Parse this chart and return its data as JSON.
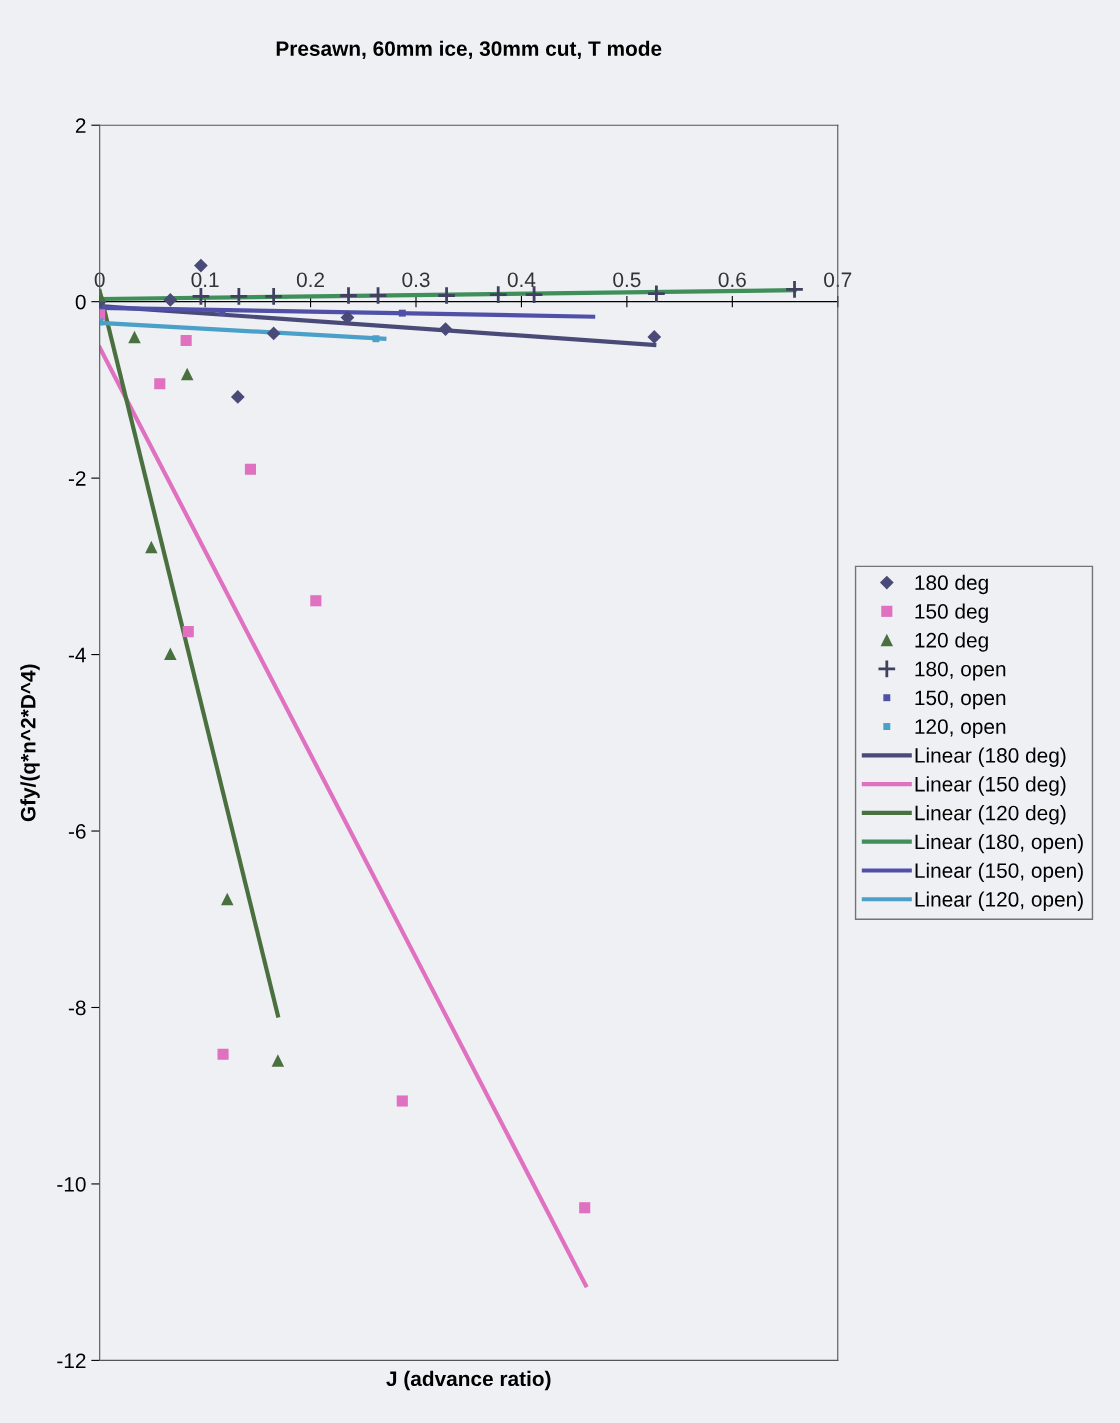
{
  "chart_data": {
    "type": "scatter",
    "title": "Presawn, 60mm ice, 30mm cut, T mode",
    "xlabel": "J (advance ratio)",
    "ylabel": "Gfy/(q*n^2*D^4)",
    "xlim": [
      0,
      0.7
    ],
    "ylim": [
      -12,
      2
    ],
    "xticks": [
      0,
      0.1,
      0.2,
      0.3,
      0.4,
      0.5,
      0.6,
      0.7
    ],
    "yticks": [
      -12,
      -10,
      -8,
      -6,
      -4,
      -2,
      0,
      2
    ],
    "grid": false,
    "legend": "right",
    "series": [
      {
        "name": "180 deg",
        "marker": "diamond",
        "color": "#4a4a78",
        "x": [
          0,
          0.067,
          0.096,
          0.131,
          0.165,
          0.235,
          0.328,
          0.526
        ],
        "values": [
          0,
          0.02,
          0.41,
          -1.08,
          -0.36,
          -0.18,
          -0.31,
          -0.4
        ]
      },
      {
        "name": "150 deg",
        "marker": "square",
        "color": "#e070c0",
        "x": [
          0,
          0.057,
          0.082,
          0.084,
          0.117,
          0.143,
          0.205,
          0.287,
          0.46
        ],
        "values": [
          -0.15,
          -0.93,
          -0.44,
          -3.74,
          -8.53,
          -1.9,
          -3.39,
          -9.06,
          -10.27
        ]
      },
      {
        "name": "120 deg",
        "marker": "triangle",
        "color": "#4a7040",
        "x": [
          0,
          0.033,
          0.049,
          0.067,
          0.083,
          0.121,
          0.169
        ],
        "values": [
          0.07,
          -0.4,
          -2.78,
          -3.99,
          -0.82,
          -6.77,
          -8.6
        ]
      },
      {
        "name": "180, open",
        "marker": "cross",
        "color": "#404060",
        "x": [
          0.096,
          0.132,
          0.165,
          0.236,
          0.264,
          0.329,
          0.378,
          0.412,
          0.528,
          0.659
        ],
        "values": [
          0.06,
          0.06,
          0.06,
          0.07,
          0.07,
          0.07,
          0.08,
          0.08,
          0.09,
          0.14
        ]
      },
      {
        "name": "150, open",
        "marker": "square",
        "color": "#5050a8",
        "x": [
          0.116,
          0.287
        ],
        "values": [
          -0.12,
          -0.13
        ]
      },
      {
        "name": "120, open",
        "marker": "square",
        "color": "#4aa0c8",
        "x": [
          0,
          0.262
        ],
        "values": [
          -0.23,
          -0.42
        ]
      },
      {
        "name": "Linear (180 deg)",
        "type": "line",
        "color": "#4a4a78",
        "x": [
          0,
          0.526
        ],
        "values": [
          -0.05,
          -0.49
        ]
      },
      {
        "name": "Linear (150 deg)",
        "type": "line",
        "color": "#e070c0",
        "x": [
          0,
          0.461
        ],
        "values": [
          -0.52,
          -11.15
        ]
      },
      {
        "name": "Linear (120 deg)",
        "type": "line",
        "color": "#4a7040",
        "x": [
          0,
          0.169
        ],
        "values": [
          0.12,
          -8.09
        ]
      },
      {
        "name": "Linear (180, open)",
        "type": "line",
        "color": "#3f8f5a",
        "x": [
          0,
          0.659
        ],
        "values": [
          0.03,
          0.13
        ]
      },
      {
        "name": "Linear (150, open)",
        "type": "line",
        "color": "#5050a8",
        "x": [
          0,
          0.468
        ],
        "values": [
          -0.07,
          -0.17
        ]
      },
      {
        "name": "Linear (120, open)",
        "type": "line",
        "color": "#4aa0c8",
        "x": [
          0,
          0.27
        ],
        "values": [
          -0.24,
          -0.42
        ]
      }
    ]
  }
}
